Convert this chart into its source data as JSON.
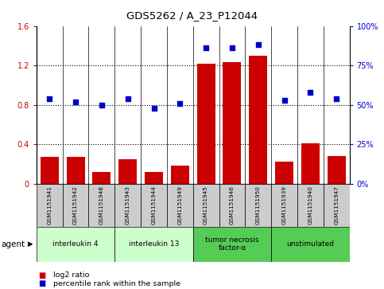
{
  "title": "GDS5262 / A_23_P12044",
  "samples": [
    "GSM1151941",
    "GSM1151942",
    "GSM1151948",
    "GSM1151943",
    "GSM1151944",
    "GSM1151949",
    "GSM1151945",
    "GSM1151946",
    "GSM1151950",
    "GSM1151939",
    "GSM1151940",
    "GSM1151947"
  ],
  "log2_ratio": [
    0.27,
    0.27,
    0.12,
    0.25,
    0.12,
    0.18,
    1.22,
    1.23,
    1.3,
    0.22,
    0.41,
    0.28
  ],
  "percentile_pct": [
    54,
    52,
    50,
    54,
    48,
    51,
    86,
    86,
    88,
    53,
    58,
    54
  ],
  "bar_color": "#cc0000",
  "dot_color": "#0000cc",
  "groups": [
    {
      "label": "interleukin 4",
      "start": 0,
      "end": 3,
      "color": "#ccffcc"
    },
    {
      "label": "interleukin 13",
      "start": 3,
      "end": 6,
      "color": "#ccffcc"
    },
    {
      "label": "tumor necrosis\nfactor-α",
      "start": 6,
      "end": 9,
      "color": "#55cc55"
    },
    {
      "label": "unstimulated",
      "start": 9,
      "end": 12,
      "color": "#55cc55"
    }
  ],
  "ylim_left": [
    0,
    1.6
  ],
  "ylim_right": [
    0,
    100
  ],
  "yticks_left": [
    0,
    0.4,
    0.8,
    1.2,
    1.6
  ],
  "yticks_right": [
    0,
    25,
    50,
    75,
    100
  ],
  "ytick_labels_left": [
    "0",
    "0.4",
    "0.8",
    "1.2",
    "1.6"
  ],
  "ytick_labels_right": [
    "0%",
    "25%",
    "50%",
    "75%",
    "100%"
  ],
  "legend_bar_label": "log2 ratio",
  "legend_dot_label": "percentile rank within the sample",
  "agent_label": "agent",
  "sample_box_color": "#cccccc",
  "plot_bg_color": "#ffffff",
  "fig_bg_color": "#ffffff"
}
